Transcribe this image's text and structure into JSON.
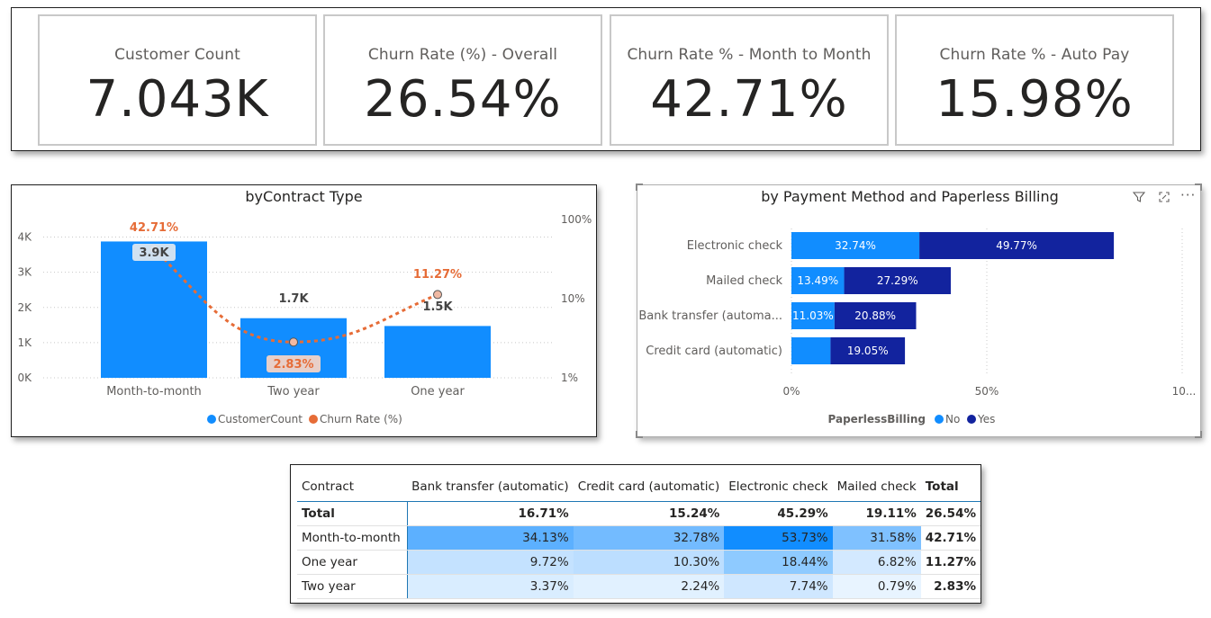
{
  "kpis": [
    {
      "label": "Customer Count",
      "value": "7.043K"
    },
    {
      "label": "Churn Rate (%) - Overall",
      "value": "26.54%"
    },
    {
      "label": "Churn Rate % - Month to Month",
      "value": "42.71%"
    },
    {
      "label": "Churn Rate % - Auto Pay",
      "value": "15.98%"
    }
  ],
  "contract_chart": {
    "title": "byContract Type",
    "legend": [
      "CustomerCount",
      "Churn Rate (%)"
    ],
    "colors": {
      "bar": "#118dff",
      "line": "#e66c37"
    },
    "y_left_ticks": [
      "0K",
      "1K",
      "2K",
      "3K",
      "4K"
    ],
    "y_right_ticks": [
      "1%",
      "10%",
      "100%"
    ]
  },
  "payment_chart": {
    "title": "by Payment Method and Paperless Billing",
    "legend_title": "PaperlessBilling",
    "legend": [
      "No",
      "Yes"
    ],
    "colors": {
      "no": "#118dff",
      "yes": "#12239e"
    },
    "x_ticks": [
      "0%",
      "50%",
      "10..."
    ]
  },
  "chart_data": [
    {
      "type": "bar",
      "title": "byContract Type",
      "categories": [
        "Month-to-month",
        "Two year",
        "One year"
      ],
      "series": [
        {
          "name": "CustomerCount",
          "values": [
            3875,
            1695,
            1473
          ],
          "labels": [
            "3.9K",
            "1.7K",
            "1.5K"
          ],
          "axis": "left"
        },
        {
          "name": "Churn Rate (%)",
          "type": "line",
          "values": [
            42.71,
            2.83,
            11.27
          ],
          "labels": [
            "42.71%",
            "2.83%",
            "11.27%"
          ],
          "axis": "right"
        }
      ],
      "ylim": [
        0,
        4500
      ],
      "y2_scale": "log",
      "y2lim": [
        1,
        100
      ],
      "legend_position": "bottom"
    },
    {
      "type": "bar",
      "orientation": "horizontal",
      "stacked": true,
      "title": "by Payment Method and Paperless Billing",
      "categories": [
        "Electronic check",
        "Mailed check",
        "Bank transfer (automa...",
        "Credit card (automatic)"
      ],
      "series": [
        {
          "name": "No",
          "values": [
            32.74,
            13.49,
            11.03,
            10.0
          ],
          "labels": [
            "32.74%",
            "13.49%",
            "11.03%",
            ""
          ]
        },
        {
          "name": "Yes",
          "values": [
            49.77,
            27.29,
            20.88,
            19.05
          ],
          "labels": [
            "49.77%",
            "27.29%",
            "20.88%",
            "19.05%"
          ]
        }
      ],
      "xlim": [
        0,
        100
      ],
      "legend_position": "bottom"
    }
  ],
  "matrix": {
    "headers": [
      "Contract",
      "Bank transfer (automatic)",
      "Credit card (automatic)",
      "Electronic check",
      "Mailed check",
      "Total"
    ],
    "rows": [
      {
        "label": "Total",
        "cells": [
          "16.71%",
          "15.24%",
          "45.29%",
          "19.11%",
          "26.54%"
        ],
        "bold": true
      },
      {
        "label": "Month-to-month",
        "cells": [
          "34.13%",
          "32.78%",
          "53.73%",
          "31.58%",
          "42.71%"
        ]
      },
      {
        "label": "One year",
        "cells": [
          "9.72%",
          "10.30%",
          "18.44%",
          "6.82%",
          "11.27%"
        ]
      },
      {
        "label": "Two year",
        "cells": [
          "3.37%",
          "2.24%",
          "7.74%",
          "0.79%",
          "2.83%"
        ]
      }
    ]
  }
}
